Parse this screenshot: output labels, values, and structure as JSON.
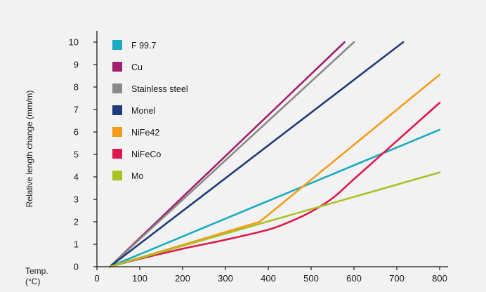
{
  "chart_data": {
    "type": "line",
    "ylabel": "Relative length change (mm/m)",
    "xlabel_lines": [
      "Temp.",
      "(°C)"
    ],
    "xlim": [
      0,
      800
    ],
    "ylim": [
      0,
      10
    ],
    "x_ticks": [
      0,
      100,
      200,
      300,
      400,
      500,
      600,
      700,
      800
    ],
    "y_ticks": [
      0,
      1,
      2,
      3,
      4,
      5,
      6,
      7,
      8,
      9,
      10
    ],
    "grid": false,
    "legend_position": "top-left",
    "series": [
      {
        "name": "F 99.7",
        "color": "#1aabc0",
        "points": [
          [
            30,
            0
          ],
          [
            800,
            6.1
          ]
        ]
      },
      {
        "name": "Cu",
        "color": "#a3206e",
        "points": [
          [
            30,
            0
          ],
          [
            578,
            10
          ]
        ]
      },
      {
        "name": "Stainless steel",
        "color": "#8a8a8a",
        "points": [
          [
            30,
            0
          ],
          [
            600,
            10
          ]
        ]
      },
      {
        "name": "Monel",
        "color": "#1f3a78",
        "points": [
          [
            30,
            0
          ],
          [
            715,
            10
          ]
        ]
      },
      {
        "name": "NiFe42",
        "color": "#f39c1a",
        "points": [
          [
            30,
            0
          ],
          [
            380,
            2.0
          ],
          [
            800,
            8.55
          ]
        ]
      },
      {
        "name": "NiFeCo",
        "color": "#e0174c",
        "points": [
          [
            30,
            0
          ],
          [
            100,
            0.35
          ],
          [
            200,
            0.8
          ],
          [
            300,
            1.2
          ],
          [
            400,
            1.65
          ],
          [
            450,
            2.0
          ],
          [
            500,
            2.45
          ],
          [
            550,
            3.05
          ],
          [
            600,
            3.9
          ],
          [
            700,
            5.6
          ],
          [
            800,
            7.3
          ]
        ]
      },
      {
        "name": "Mo",
        "color": "#a9c125",
        "points": [
          [
            30,
            0
          ],
          [
            800,
            4.2
          ]
        ]
      }
    ]
  }
}
